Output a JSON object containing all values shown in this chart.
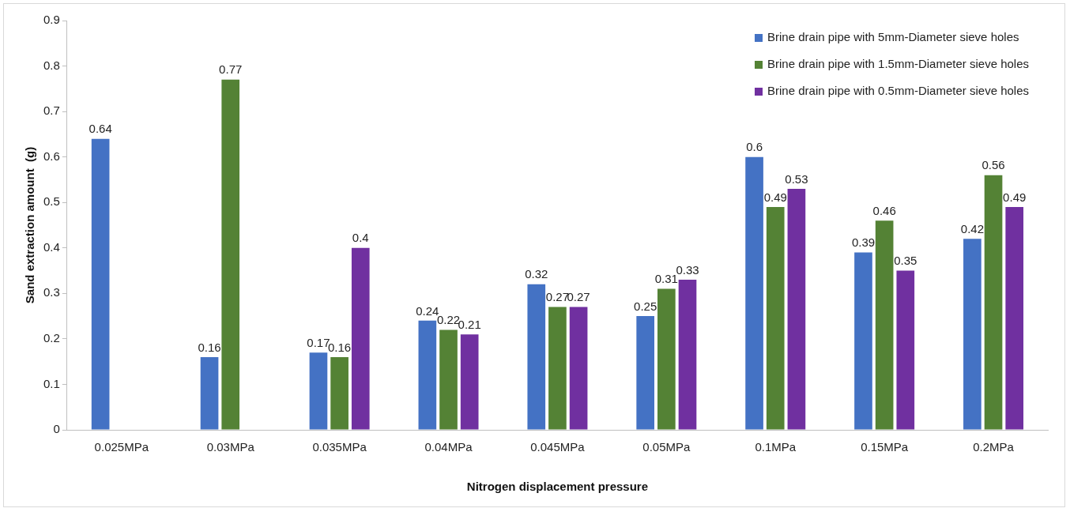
{
  "chart_data": {
    "type": "bar",
    "xlabel": "Nitrogen displacement pressure",
    "ylabel": "Sand extraction amount  (g)",
    "categories": [
      "0.025MPa",
      "0.03MPa",
      "0.035MPa",
      "0.04MPa",
      "0.045MPa",
      "0.05MPa",
      "0.1MPa",
      "0.15MPa",
      "0.2MPa"
    ],
    "series": [
      {
        "name": "Brine drain pipe with 5mm-Diameter sieve holes",
        "color": "#4472c4",
        "values": [
          0.64,
          0.16,
          0.17,
          0.24,
          0.32,
          0.25,
          0.6,
          0.39,
          0.42
        ]
      },
      {
        "name": "Brine drain pipe with 1.5mm-Diameter sieve holes",
        "color": "#548235",
        "values": [
          null,
          0.77,
          0.16,
          0.22,
          0.27,
          0.31,
          0.49,
          0.46,
          0.56
        ]
      },
      {
        "name": "Brine drain pipe with 0.5mm-Diameter sieve holes",
        "color": "#7030a0",
        "values": [
          null,
          null,
          0.4,
          0.21,
          0.27,
          0.33,
          0.53,
          0.35,
          0.49
        ]
      }
    ],
    "ylim": [
      0,
      0.9
    ],
    "yticks": [
      0,
      0.1,
      0.2,
      0.3,
      0.4,
      0.5,
      0.6,
      0.7,
      0.8,
      0.9
    ],
    "grid": false,
    "legend": "top right",
    "data_labels": true
  }
}
